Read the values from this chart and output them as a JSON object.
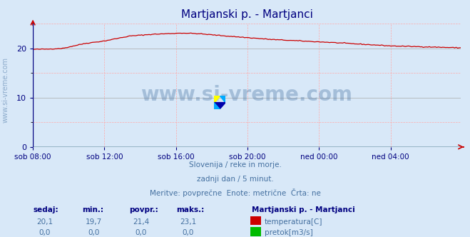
{
  "title": "Martjanski p. - Martjanci",
  "title_color": "#000080",
  "background_color": "#d8e8f8",
  "plot_bg_color": "#d8e8f8",
  "grid_color_major": "#aaaaaa",
  "grid_color_minor": "#ffaaaa",
  "watermark_text": "www.si-vreme.com",
  "watermark_color": "#4470a0",
  "xlabel_color": "#000080",
  "tick_color": "#000080",
  "axis_color": "#000080",
  "line_color_temp": "#cc0000",
  "line_color_flow": "#00aa00",
  "ylim": [
    0,
    25
  ],
  "yticks": [
    0,
    10,
    20
  ],
  "x_labels": [
    "sob 08:00",
    "sob 12:00",
    "sob 16:00",
    "sob 20:00",
    "ned 00:00",
    "ned 04:00"
  ],
  "x_positions": [
    0,
    48,
    96,
    144,
    192,
    240
  ],
  "total_points": 288,
  "subtitle_line1": "Slovenija / reke in morje.",
  "subtitle_line2": "zadnji dan / 5 minut.",
  "subtitle_line3": "Meritve: povprečne  Enote: metrične  Črta: ne",
  "subtitle_color": "#4470a0",
  "legend_title": "Martjanski p. - Martjanci",
  "legend_title_color": "#000080",
  "legend_temp_label": "temperatura[C]",
  "legend_flow_label": "pretok[m3/s]",
  "legend_color_temp": "#cc0000",
  "legend_color_flow": "#00bb00",
  "stats_headers": [
    "sedaj:",
    "min.:",
    "povpr.:",
    "maks.:"
  ],
  "stats_temp": [
    "20,1",
    "19,7",
    "21,4",
    "23,1"
  ],
  "stats_flow": [
    "0,0",
    "0,0",
    "0,0",
    "0,0"
  ],
  "stats_color": "#4470a0",
  "stats_header_color": "#000080",
  "arrow_color": "#cc0000",
  "keypoints_x": [
    0,
    10,
    20,
    35,
    48,
    65,
    80,
    100,
    110,
    130,
    160,
    200,
    240,
    288
  ],
  "keypoints_y": [
    19.8,
    19.85,
    20.0,
    21.0,
    21.5,
    22.5,
    22.85,
    23.1,
    23.0,
    22.5,
    21.8,
    21.2,
    20.5,
    20.1
  ]
}
